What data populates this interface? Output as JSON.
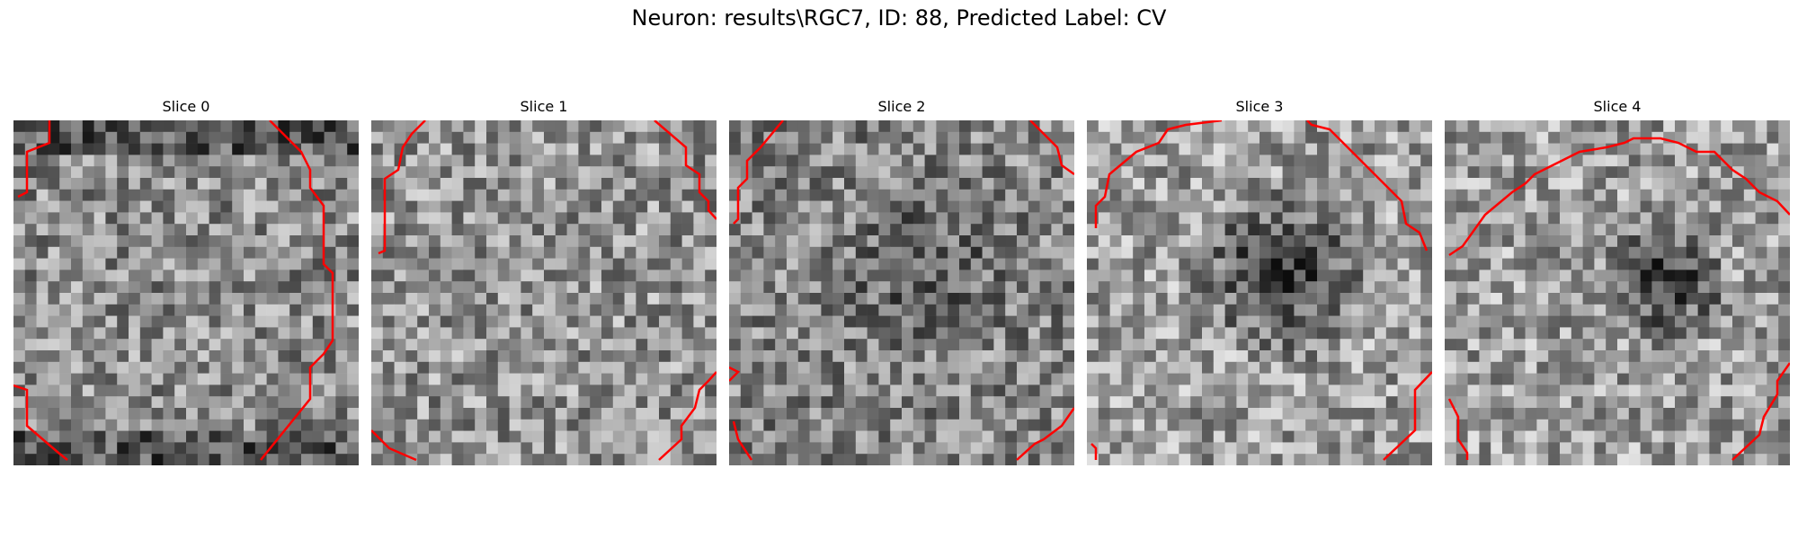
{
  "figure": {
    "title": "Neuron: results\\RGC7, ID: 88, Predicted Label: CV"
  },
  "colors": {
    "contour": "#ff0000",
    "background": "#ffffff"
  },
  "panels": [
    {
      "title": "Slice 0",
      "seed": 11,
      "dark_blob": null,
      "brightness": 0.55
    },
    {
      "title": "Slice 1",
      "seed": 23,
      "dark_blob": null,
      "brightness": 0.58
    },
    {
      "title": "Slice 2",
      "seed": 37,
      "dark_blob": "center",
      "brightness": 0.52
    },
    {
      "title": "Slice 3",
      "seed": 41,
      "dark_blob": "center",
      "brightness": 0.62
    },
    {
      "title": "Slice 4",
      "seed": 59,
      "dark_blob": "upper-right",
      "brightness": 0.62
    }
  ]
}
